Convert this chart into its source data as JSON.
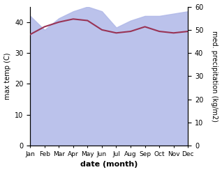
{
  "months": [
    "Jan",
    "Feb",
    "Mar",
    "Apr",
    "May",
    "Jun",
    "Jul",
    "Aug",
    "Sep",
    "Oct",
    "Nov",
    "Dec"
  ],
  "x": [
    0,
    1,
    2,
    3,
    4,
    5,
    6,
    7,
    8,
    9,
    10,
    11
  ],
  "temp_max": [
    36.0,
    38.5,
    40.0,
    41.0,
    40.5,
    37.5,
    36.5,
    37.0,
    38.5,
    37.0,
    36.5,
    37.0
  ],
  "precip": [
    56,
    50,
    55,
    58,
    60,
    58,
    51,
    54,
    56,
    56,
    57,
    58
  ],
  "temp_color": "#993355",
  "precip_fill_color": "#b0b8e8",
  "precip_fill_alpha": 0.85,
  "xlabel": "date (month)",
  "ylabel_left": "max temp (C)",
  "ylabel_right": "med. precipitation (kg/m2)",
  "ylim_left": [
    0,
    45
  ],
  "ylim_right": [
    0,
    60
  ],
  "yticks_left": [
    0,
    10,
    20,
    30,
    40
  ],
  "yticks_right": [
    0,
    10,
    20,
    30,
    40,
    50,
    60
  ]
}
